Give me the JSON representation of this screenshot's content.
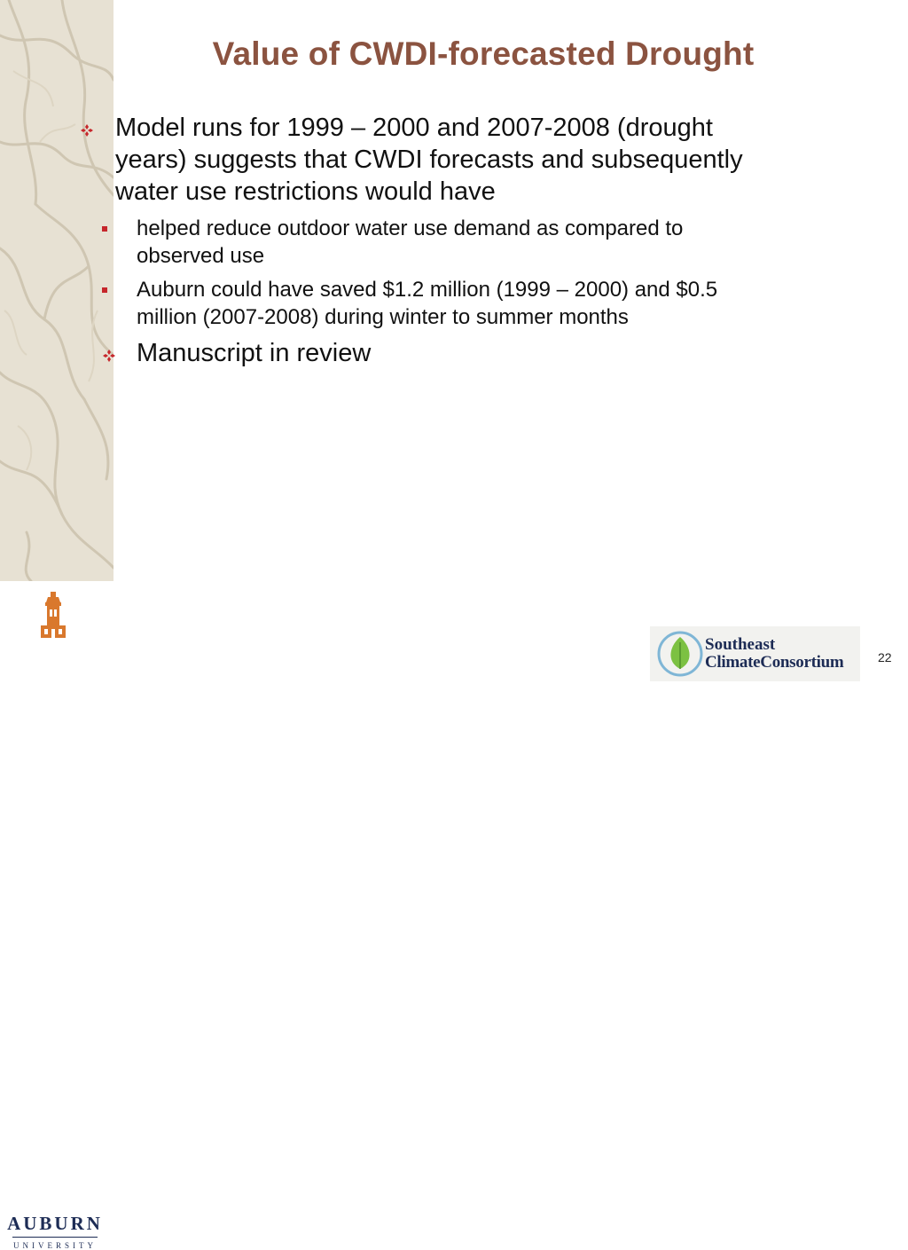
{
  "slide": {
    "title": "Value of CWDI-forecasted Drought",
    "number": "22"
  },
  "bullets": [
    {
      "level": 1,
      "marker": "diamond-bullet",
      "lines": [
        "Model runs for 1999 – 2000 and 2007-2008 (drought",
        "years) suggests that CWDI forecasts and subsequently",
        "water use restrictions would have"
      ]
    },
    {
      "level": 2,
      "marker": "square-bullet",
      "lines": [
        "helped reduce outdoor water use demand as compared to",
        "observed use"
      ]
    },
    {
      "level": 2,
      "marker": "square-bullet",
      "lines": [
        "Auburn could have saved $1.2 million (1999 – 2000) and $0.5",
        "million (2007-2008) during winter to summer months"
      ]
    },
    {
      "level": 1,
      "marker": "diamond-bullet",
      "lines": [
        "Manuscript in review"
      ]
    }
  ],
  "logos": {
    "auburn": {
      "name": "AUBURN",
      "subtitle": "UNIVERSITY",
      "icon": "tower-icon"
    },
    "consortium": {
      "line1": "Southeast",
      "line2": "ClimateConsortium",
      "icon": "leaf-icon"
    }
  },
  "colors": {
    "title": "#8b5340",
    "bullet": "#c6262b",
    "text": "#111111",
    "logo_text": "#1d2c55"
  }
}
